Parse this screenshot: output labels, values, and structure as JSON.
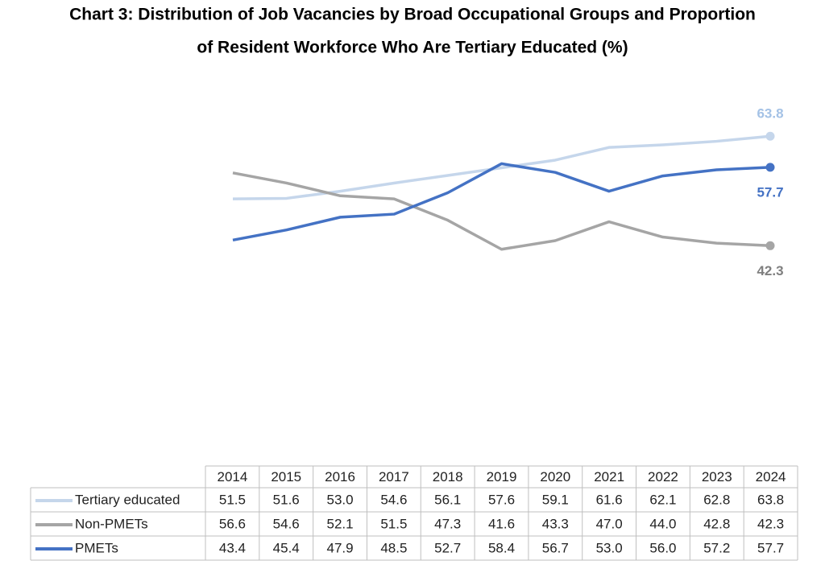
{
  "chart_data": {
    "type": "line",
    "title": [
      "Chart 3: Distribution of Job Vacancies by Broad Occupational Groups and Proportion",
      "of Resident Workforce Who Are Tertiary Educated (%)"
    ],
    "categories": [
      "2014",
      "2015",
      "2016",
      "2017",
      "2018",
      "2019",
      "2020",
      "2021",
      "2022",
      "2023",
      "2024"
    ],
    "ylim": [
      0,
      70
    ],
    "series": [
      {
        "name": "Tertiary educated",
        "color": "#c5d6eb",
        "label_color": "#a4c2e6",
        "values": [
          51.5,
          51.6,
          53,
          54.6,
          56.1,
          57.6,
          59.1,
          61.6,
          62.1,
          62.8,
          63.8
        ],
        "value_labels": [
          "51.5",
          "51.6",
          "53.0",
          "54.6",
          "56.1",
          "57.6",
          "59.1",
          "61.6",
          "62.1",
          "62.8",
          "63.8"
        ]
      },
      {
        "name": "Non-PMETs",
        "color": "#a5a5a5",
        "label_color": "#7f7f7f",
        "values": [
          56.6,
          54.6,
          52.1,
          51.5,
          47.3,
          41.6,
          43.3,
          47,
          44,
          42.8,
          42.3
        ],
        "value_labels": [
          "56.6",
          "54.6",
          "52.1",
          "51.5",
          "47.3",
          "41.6",
          "43.3",
          "47.0",
          "44.0",
          "42.8",
          "42.3"
        ]
      },
      {
        "name": "PMETs",
        "color": "#4472c4",
        "label_color": "#4472c4",
        "values": [
          43.4,
          45.4,
          47.9,
          48.5,
          52.7,
          58.4,
          56.7,
          53,
          56,
          57.2,
          57.7
        ],
        "value_labels": [
          "43.4",
          "45.4",
          "47.9",
          "48.5",
          "52.7",
          "58.4",
          "56.7",
          "53.0",
          "56.0",
          "57.2",
          "57.7"
        ]
      }
    ]
  }
}
